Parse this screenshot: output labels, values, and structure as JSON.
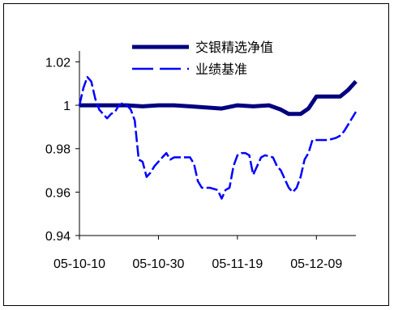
{
  "chart_data": {
    "type": "line",
    "x_tick_labels": [
      "05-10-10",
      "05-10-30",
      "05-11-19",
      "05-12-09"
    ],
    "x_tick_dates": [
      "2005-10-10",
      "2005-10-30",
      "2005-11-19",
      "2005-12-09"
    ],
    "x_range": [
      "2005-10-10",
      "2005-12-19"
    ],
    "y_tick_labels": [
      "0.94",
      "0.96",
      "0.98",
      "1",
      "1.02"
    ],
    "y_ticks": [
      0.94,
      0.96,
      0.98,
      1.0,
      1.02
    ],
    "ylim": [
      0.94,
      1.025
    ],
    "grid": false,
    "legend_position": "top-center",
    "series": [
      {
        "name": "交银精选净值",
        "color": "#000080",
        "line_style": "solid",
        "points": [
          [
            "2005-10-10",
            1.0
          ],
          [
            "2005-10-14",
            1.0
          ],
          [
            "2005-10-18",
            1.0
          ],
          [
            "2005-10-22",
            1.0
          ],
          [
            "2005-10-26",
            0.9995
          ],
          [
            "2005-10-30",
            1.0
          ],
          [
            "2005-11-03",
            1.0
          ],
          [
            "2005-11-07",
            0.9995
          ],
          [
            "2005-11-11",
            0.999
          ],
          [
            "2005-11-15",
            0.9985
          ],
          [
            "2005-11-19",
            1.0
          ],
          [
            "2005-11-23",
            0.9995
          ],
          [
            "2005-11-27",
            1.0
          ],
          [
            "2005-11-30",
            0.998
          ],
          [
            "2005-12-02",
            0.996
          ],
          [
            "2005-12-05",
            0.996
          ],
          [
            "2005-12-07",
            0.9985
          ],
          [
            "2005-12-09",
            1.004
          ],
          [
            "2005-12-12",
            1.004
          ],
          [
            "2005-12-15",
            1.004
          ],
          [
            "2005-12-17",
            1.007
          ],
          [
            "2005-12-19",
            1.011
          ]
        ]
      },
      {
        "name": "业绩基准",
        "color": "#0000ff",
        "line_style": "dashed",
        "points": [
          [
            "2005-10-10",
            1.0
          ],
          [
            "2005-10-11",
            1.008
          ],
          [
            "2005-10-12",
            1.013
          ],
          [
            "2005-10-13",
            1.011
          ],
          [
            "2005-10-14",
            1.003
          ],
          [
            "2005-10-15",
            0.998
          ],
          [
            "2005-10-16",
            0.996
          ],
          [
            "2005-10-17",
            0.994
          ],
          [
            "2005-10-18",
            0.996
          ],
          [
            "2005-10-19",
            0.997
          ],
          [
            "2005-10-20",
            1.0
          ],
          [
            "2005-10-21",
            1.001
          ],
          [
            "2005-10-22",
            1.0
          ],
          [
            "2005-10-23",
            0.998
          ],
          [
            "2005-10-24",
            0.993
          ],
          [
            "2005-10-25",
            0.975
          ],
          [
            "2005-10-26",
            0.974
          ],
          [
            "2005-10-27",
            0.967
          ],
          [
            "2005-10-28",
            0.969
          ],
          [
            "2005-10-29",
            0.972
          ],
          [
            "2005-10-30",
            0.974
          ],
          [
            "2005-10-31",
            0.976
          ],
          [
            "2005-11-01",
            0.978
          ],
          [
            "2005-11-02",
            0.975
          ],
          [
            "2005-11-03",
            0.976
          ],
          [
            "2005-11-05",
            0.976
          ],
          [
            "2005-11-07",
            0.976
          ],
          [
            "2005-11-08",
            0.973
          ],
          [
            "2005-11-09",
            0.965
          ],
          [
            "2005-11-10",
            0.962
          ],
          [
            "2005-11-12",
            0.962
          ],
          [
            "2005-11-14",
            0.961
          ],
          [
            "2005-11-15",
            0.957
          ],
          [
            "2005-11-16",
            0.961
          ],
          [
            "2005-11-17",
            0.962
          ],
          [
            "2005-11-18",
            0.972
          ],
          [
            "2005-11-19",
            0.977
          ],
          [
            "2005-11-20",
            0.978
          ],
          [
            "2005-11-21",
            0.978
          ],
          [
            "2005-11-22",
            0.977
          ],
          [
            "2005-11-23",
            0.968
          ],
          [
            "2005-11-24",
            0.972
          ],
          [
            "2005-11-25",
            0.976
          ],
          [
            "2005-11-26",
            0.977
          ],
          [
            "2005-11-28",
            0.976
          ],
          [
            "2005-11-29",
            0.972
          ],
          [
            "2005-11-30",
            0.97
          ],
          [
            "2005-12-01",
            0.966
          ],
          [
            "2005-12-02",
            0.962
          ],
          [
            "2005-12-03",
            0.96
          ],
          [
            "2005-12-04",
            0.962
          ],
          [
            "2005-12-05",
            0.967
          ],
          [
            "2005-12-06",
            0.975
          ],
          [
            "2005-12-07",
            0.978
          ],
          [
            "2005-12-08",
            0.984
          ],
          [
            "2005-12-10",
            0.984
          ],
          [
            "2005-12-12",
            0.984
          ],
          [
            "2005-12-14",
            0.985
          ],
          [
            "2005-12-15",
            0.986
          ],
          [
            "2005-12-16",
            0.988
          ],
          [
            "2005-12-17",
            0.991
          ],
          [
            "2005-12-18",
            0.994
          ],
          [
            "2005-12-19",
            0.997
          ]
        ]
      }
    ]
  }
}
